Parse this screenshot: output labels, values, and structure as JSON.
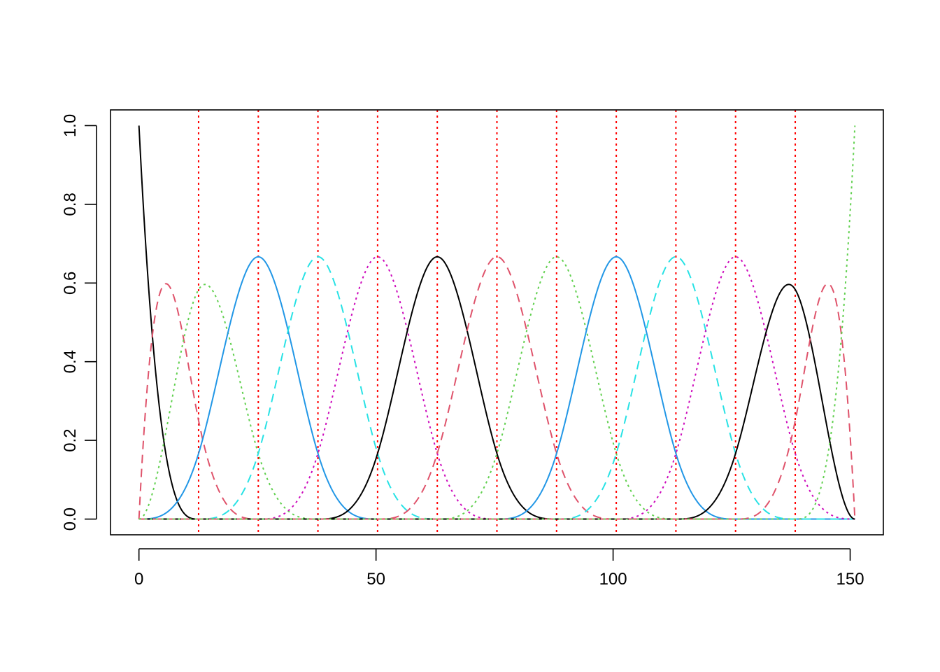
{
  "chart_data": {
    "type": "line",
    "title": "",
    "xlabel": "",
    "ylabel": "",
    "xlim": [
      -6,
      157
    ],
    "ylim": [
      -0.04,
      1.04
    ],
    "x_ticks": [
      0,
      50,
      100,
      150
    ],
    "x_tick_labels": [
      "0",
      "50",
      "100",
      "150"
    ],
    "y_ticks": [
      0.0,
      0.2,
      0.4,
      0.6,
      0.8,
      1.0
    ],
    "y_tick_labels": [
      "0.0",
      "0.2",
      "0.4",
      "0.6",
      "0.8",
      "1.0"
    ],
    "grid": false,
    "legend": "none",
    "basis": {
      "kind": "cubic B-spline",
      "degree": 3,
      "x_min": 0,
      "x_max": 151,
      "n_functions": 15
    },
    "interior_knots": [
      12.58,
      25.17,
      37.75,
      50.33,
      62.92,
      75.5,
      88.08,
      100.67,
      113.25,
      125.83,
      138.42
    ],
    "knot_line_color": "#FF0000",
    "series": [
      {
        "peak_x": 0,
        "peak_y": 1.0,
        "color": "#000000",
        "dash": "solid"
      },
      {
        "peak_x": 5.6,
        "peak_y": 0.597,
        "color": "#DF536B",
        "dash": "dashed"
      },
      {
        "peak_x": 13.9,
        "peak_y": 0.597,
        "color": "#61D04F",
        "dash": "dotted"
      },
      {
        "peak_x": 25.17,
        "peak_y": 0.667,
        "color": "#2297E6",
        "dash": "solid"
      },
      {
        "peak_x": 37.75,
        "peak_y": 0.667,
        "color": "#28E2E5",
        "dash": "dashed"
      },
      {
        "peak_x": 50.33,
        "peak_y": 0.667,
        "color": "#CD0BBC",
        "dash": "dotted"
      },
      {
        "peak_x": 62.92,
        "peak_y": 0.667,
        "color": "#000000",
        "dash": "solid"
      },
      {
        "peak_x": 75.5,
        "peak_y": 0.667,
        "color": "#DF536B",
        "dash": "dashed"
      },
      {
        "peak_x": 88.08,
        "peak_y": 0.667,
        "color": "#61D04F",
        "dash": "dotted"
      },
      {
        "peak_x": 100.67,
        "peak_y": 0.667,
        "color": "#2297E6",
        "dash": "solid"
      },
      {
        "peak_x": 113.25,
        "peak_y": 0.667,
        "color": "#28E2E5",
        "dash": "dashed"
      },
      {
        "peak_x": 125.83,
        "peak_y": 0.667,
        "color": "#CD0BBC",
        "dash": "dotted"
      },
      {
        "peak_x": 137.1,
        "peak_y": 0.597,
        "color": "#000000",
        "dash": "solid"
      },
      {
        "peak_x": 145.4,
        "peak_y": 0.597,
        "color": "#DF536B",
        "dash": "dashed"
      },
      {
        "peak_x": 151,
        "peak_y": 1.0,
        "color": "#61D04F",
        "dash": "dotted"
      }
    ]
  }
}
